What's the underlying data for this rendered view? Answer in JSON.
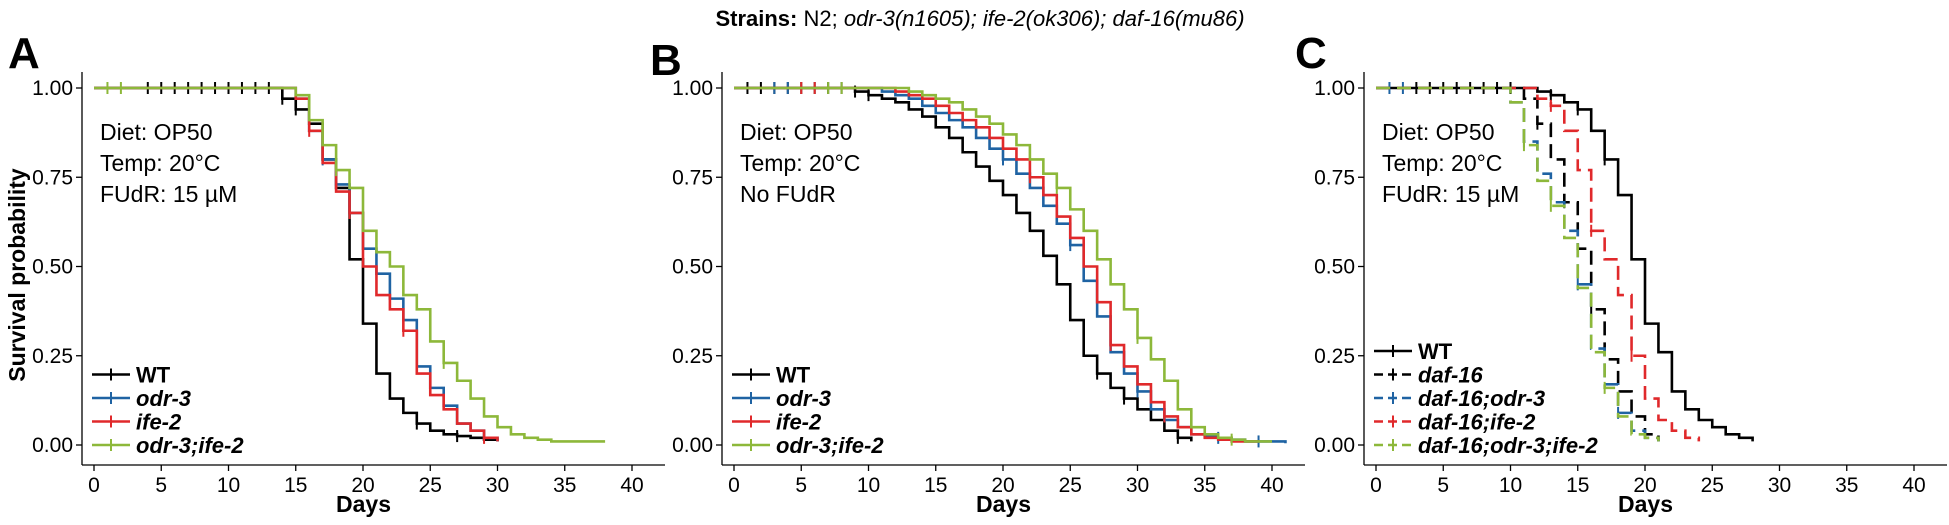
{
  "figure_title": {
    "label": "Strains:",
    "plain": "N2;",
    "italic": "odr-3(n1605); ife-2(ok306); daf-16(mu86)"
  },
  "y_axis_title": "Survival probability",
  "chart_data": [
    {
      "panel": "A",
      "type": "line",
      "step": true,
      "xlabel": "Days",
      "ylabel": "Survival probability",
      "xlim": [
        0,
        42
      ],
      "ylim": [
        0,
        1.05
      ],
      "xticks": [
        0,
        5,
        10,
        15,
        20,
        25,
        30,
        35,
        40
      ],
      "yticks": [
        0.0,
        0.25,
        0.5,
        0.75,
        1.0
      ],
      "ytick_labels": [
        "0.00",
        "0.25",
        "0.50",
        "0.75",
        "1.00"
      ],
      "conditions": [
        "Diet: OP50",
        "Temp: 20°C",
        "FUdR: 15 µM"
      ],
      "legend_position": "bottom-left",
      "series": [
        {
          "name": "WT",
          "color": "#000000",
          "dash": false,
          "italic": false,
          "x": [
            0,
            14,
            15,
            16,
            17,
            18,
            19,
            20,
            21,
            22,
            23,
            24,
            25,
            26,
            27,
            28,
            29,
            30
          ],
          "y": [
            1.0,
            0.97,
            0.94,
            0.9,
            0.8,
            0.72,
            0.52,
            0.34,
            0.2,
            0.13,
            0.09,
            0.06,
            0.04,
            0.03,
            0.025,
            0.02,
            0.015,
            0.01
          ],
          "censor_x": [
            4,
            5,
            6,
            7,
            8,
            9,
            10,
            11,
            12,
            13,
            14,
            15,
            16,
            24,
            27
          ]
        },
        {
          "name": "odr-3",
          "color": "#1f63a3",
          "dash": false,
          "italic": true,
          "x": [
            0,
            15,
            16,
            17,
            18,
            19,
            20,
            21,
            22,
            23,
            24,
            25,
            26,
            27,
            28,
            29,
            30
          ],
          "y": [
            1.0,
            0.97,
            0.88,
            0.8,
            0.73,
            0.65,
            0.55,
            0.48,
            0.41,
            0.35,
            0.22,
            0.16,
            0.11,
            0.06,
            0.04,
            0.02,
            0.01
          ],
          "censor_x": [
            17,
            21,
            25
          ]
        },
        {
          "name": "ife-2",
          "color": "#e0292b",
          "dash": false,
          "italic": true,
          "x": [
            0,
            15,
            16,
            17,
            18,
            19,
            20,
            21,
            22,
            23,
            24,
            25,
            26,
            27,
            28,
            29,
            30
          ],
          "y": [
            1.0,
            0.97,
            0.88,
            0.79,
            0.71,
            0.65,
            0.5,
            0.42,
            0.38,
            0.32,
            0.2,
            0.14,
            0.1,
            0.06,
            0.04,
            0.02,
            0.01
          ],
          "censor_x": [
            16,
            19,
            23,
            29
          ]
        },
        {
          "name": "odr-3;ife-2",
          "color": "#8db83a",
          "dash": false,
          "italic": true,
          "x": [
            0,
            15,
            16,
            17,
            18,
            19,
            20,
            21,
            22,
            23,
            24,
            25,
            26,
            27,
            28,
            29,
            30,
            31,
            32,
            33,
            34,
            38
          ],
          "y": [
            1.0,
            0.98,
            0.91,
            0.84,
            0.77,
            0.72,
            0.6,
            0.54,
            0.5,
            0.42,
            0.38,
            0.29,
            0.23,
            0.18,
            0.13,
            0.08,
            0.05,
            0.03,
            0.02,
            0.015,
            0.01,
            0.01
          ],
          "censor_x": [
            1,
            2,
            18,
            26
          ]
        }
      ]
    },
    {
      "panel": "B",
      "type": "line",
      "step": true,
      "xlabel": "Days",
      "ylabel": "Survival probability",
      "xlim": [
        0,
        42
      ],
      "ylim": [
        0,
        1.05
      ],
      "xticks": [
        0,
        5,
        10,
        15,
        20,
        25,
        30,
        35,
        40
      ],
      "yticks": [
        0.0,
        0.25,
        0.5,
        0.75,
        1.0
      ],
      "ytick_labels": [
        "0.00",
        "0.25",
        "0.50",
        "0.75",
        "1.00"
      ],
      "conditions": [
        "Diet: OP50",
        "Temp: 20°C",
        "No FUdR"
      ],
      "legend_position": "bottom-left",
      "series": [
        {
          "name": "WT",
          "color": "#000000",
          "dash": false,
          "italic": false,
          "x": [
            0,
            9,
            10,
            11,
            12,
            13,
            14,
            15,
            16,
            17,
            18,
            19,
            20,
            21,
            22,
            23,
            24,
            25,
            26,
            27,
            28,
            29,
            30,
            31,
            32,
            33,
            34
          ],
          "y": [
            1.0,
            0.99,
            0.98,
            0.97,
            0.96,
            0.94,
            0.92,
            0.89,
            0.86,
            0.82,
            0.78,
            0.74,
            0.7,
            0.65,
            0.6,
            0.53,
            0.45,
            0.35,
            0.25,
            0.2,
            0.16,
            0.13,
            0.1,
            0.07,
            0.04,
            0.02,
            0.01
          ],
          "censor_x": [
            1,
            2,
            3,
            4,
            5,
            6,
            7,
            8,
            9,
            10,
            27,
            29,
            33
          ]
        },
        {
          "name": "odr-3",
          "color": "#1f63a3",
          "dash": false,
          "italic": true,
          "x": [
            0,
            11,
            12,
            13,
            14,
            15,
            16,
            17,
            18,
            19,
            20,
            21,
            22,
            23,
            24,
            25,
            26,
            27,
            28,
            29,
            30,
            31,
            32,
            33,
            34,
            35,
            36,
            37,
            38,
            39,
            40,
            41
          ],
          "y": [
            1.0,
            0.99,
            0.98,
            0.97,
            0.95,
            0.93,
            0.91,
            0.89,
            0.86,
            0.83,
            0.8,
            0.76,
            0.72,
            0.67,
            0.62,
            0.56,
            0.46,
            0.36,
            0.26,
            0.2,
            0.15,
            0.1,
            0.07,
            0.05,
            0.03,
            0.025,
            0.02,
            0.015,
            0.01,
            0.01,
            0.01,
            0.005
          ],
          "censor_x": [
            3,
            4,
            20,
            25,
            30,
            36,
            39
          ]
        },
        {
          "name": "ife-2",
          "color": "#e0292b",
          "dash": false,
          "italic": true,
          "x": [
            0,
            12,
            13,
            14,
            15,
            16,
            17,
            18,
            19,
            20,
            21,
            22,
            23,
            24,
            25,
            26,
            27,
            28,
            29,
            30,
            31,
            32,
            33,
            34,
            35,
            36,
            37,
            38,
            39
          ],
          "y": [
            1.0,
            0.99,
            0.98,
            0.97,
            0.95,
            0.93,
            0.91,
            0.89,
            0.86,
            0.83,
            0.8,
            0.75,
            0.7,
            0.64,
            0.58,
            0.5,
            0.4,
            0.28,
            0.22,
            0.17,
            0.12,
            0.08,
            0.05,
            0.03,
            0.02,
            0.015,
            0.01,
            0.01,
            0.01
          ],
          "censor_x": [
            5,
            6,
            22,
            28,
            32
          ]
        },
        {
          "name": "odr-3;ife-2",
          "color": "#8db83a",
          "dash": false,
          "italic": true,
          "x": [
            0,
            13,
            14,
            15,
            16,
            17,
            18,
            19,
            20,
            21,
            22,
            23,
            24,
            25,
            26,
            27,
            28,
            29,
            30,
            31,
            32,
            33,
            34,
            35,
            36,
            37,
            38,
            39,
            40
          ],
          "y": [
            1.0,
            0.99,
            0.98,
            0.97,
            0.96,
            0.94,
            0.92,
            0.9,
            0.87,
            0.84,
            0.8,
            0.76,
            0.72,
            0.66,
            0.6,
            0.52,
            0.45,
            0.38,
            0.3,
            0.24,
            0.18,
            0.1,
            0.05,
            0.03,
            0.02,
            0.015,
            0.01,
            0.01,
            0.01
          ],
          "censor_x": [
            7,
            8,
            24,
            30,
            37
          ]
        }
      ]
    },
    {
      "panel": "C",
      "type": "line",
      "step": true,
      "xlabel": "Days",
      "ylabel": "Survival probability",
      "xlim": [
        0,
        42
      ],
      "ylim": [
        0,
        1.05
      ],
      "xticks": [
        0,
        5,
        10,
        15,
        20,
        25,
        30,
        35,
        40
      ],
      "yticks": [
        0.0,
        0.25,
        0.5,
        0.75,
        1.0
      ],
      "ytick_labels": [
        "0.00",
        "0.25",
        "0.50",
        "0.75",
        "1.00"
      ],
      "conditions": [
        "Diet: OP50",
        "Temp: 20°C",
        "FUdR: 15 µM"
      ],
      "legend_position": "bottom-left",
      "series": [
        {
          "name": "WT",
          "color": "#000000",
          "dash": false,
          "italic": false,
          "x": [
            0,
            12,
            13,
            14,
            15,
            16,
            17,
            18,
            19,
            20,
            21,
            22,
            23,
            24,
            25,
            26,
            27,
            28
          ],
          "y": [
            1.0,
            0.99,
            0.98,
            0.96,
            0.94,
            0.88,
            0.8,
            0.7,
            0.52,
            0.34,
            0.26,
            0.15,
            0.1,
            0.07,
            0.05,
            0.03,
            0.02,
            0.01
          ],
          "censor_x": [
            3,
            4,
            5,
            6,
            7,
            8,
            9,
            10,
            13,
            15,
            17
          ]
        },
        {
          "name": "daf-16",
          "color": "#000000",
          "dash": true,
          "italic": true,
          "x": [
            0,
            11,
            12,
            13,
            14,
            15,
            16,
            17,
            18,
            19,
            20,
            21
          ],
          "y": [
            1.0,
            0.97,
            0.9,
            0.8,
            0.68,
            0.55,
            0.38,
            0.24,
            0.15,
            0.08,
            0.03,
            0.01
          ],
          "censor_x": [
            12,
            14,
            16
          ]
        },
        {
          "name": "daf-16;odr-3",
          "color": "#1f63a3",
          "dash": true,
          "italic": true,
          "x": [
            0,
            10,
            11,
            12,
            13,
            14,
            15,
            16,
            17,
            18,
            19,
            20,
            21
          ],
          "y": [
            1.0,
            0.96,
            0.85,
            0.76,
            0.68,
            0.6,
            0.45,
            0.27,
            0.17,
            0.09,
            0.04,
            0.02,
            0.01
          ],
          "censor_x": [
            1,
            2,
            11,
            15,
            18
          ]
        },
        {
          "name": "daf-16;ife-2",
          "color": "#e0292b",
          "dash": true,
          "italic": true,
          "x": [
            0,
            12,
            13,
            14,
            15,
            16,
            17,
            18,
            19,
            20,
            21,
            22,
            23,
            24
          ],
          "y": [
            1.0,
            0.97,
            0.95,
            0.88,
            0.77,
            0.6,
            0.52,
            0.42,
            0.25,
            0.13,
            0.07,
            0.04,
            0.02,
            0.01
          ],
          "censor_x": [
            13,
            16,
            19
          ]
        },
        {
          "name": "daf-16;odr-3;ife-2",
          "color": "#8db83a",
          "dash": true,
          "italic": true,
          "x": [
            0,
            10,
            11,
            12,
            13,
            14,
            15,
            16,
            17,
            18,
            19,
            20,
            21
          ],
          "y": [
            1.0,
            0.96,
            0.84,
            0.74,
            0.67,
            0.58,
            0.44,
            0.26,
            0.16,
            0.08,
            0.03,
            0.02,
            0.01
          ],
          "censor_x": [
            11,
            13,
            17
          ]
        }
      ]
    }
  ]
}
